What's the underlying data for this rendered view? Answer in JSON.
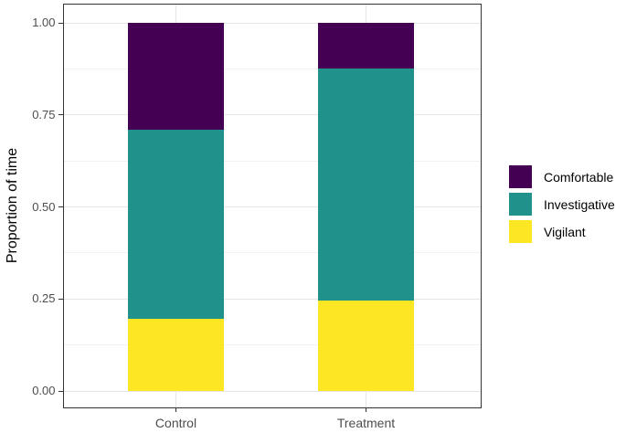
{
  "chart_data": {
    "type": "bar",
    "variant": "stacked",
    "title": "",
    "xlabel": "",
    "ylabel": "Proportion of time",
    "categories": [
      "Control",
      "Treatment"
    ],
    "series": [
      {
        "name": "Comfortable",
        "color": "#440154",
        "values": [
          0.29,
          0.125
        ]
      },
      {
        "name": "Investigative",
        "color": "#21918c",
        "values": [
          0.515,
          0.63
        ]
      },
      {
        "name": "Vigilant",
        "color": "#fde725",
        "values": [
          0.195,
          0.245
        ]
      }
    ],
    "ylim": [
      0,
      1
    ],
    "y_ticks": [
      0,
      0.25,
      0.5,
      0.75,
      1
    ],
    "y_tick_labels": [
      "0.00",
      "0.25",
      "0.50",
      "0.75",
      "1.00"
    ],
    "y_minor_ticks": [
      0.125,
      0.375,
      0.625,
      0.875
    ],
    "grid": "horizontal major+minor, vertical major at categories",
    "legend_position": "right"
  },
  "style": {
    "panel_border_color": "#333333",
    "grid_major_color": "#e6e6e6",
    "grid_minor_color": "#f2f2f2",
    "tick_color": "#333333",
    "axis_text_color": "#4d4d4d",
    "axis_title_color": "#000000",
    "legend_text_color": "#000000",
    "background": "#ffffff"
  }
}
